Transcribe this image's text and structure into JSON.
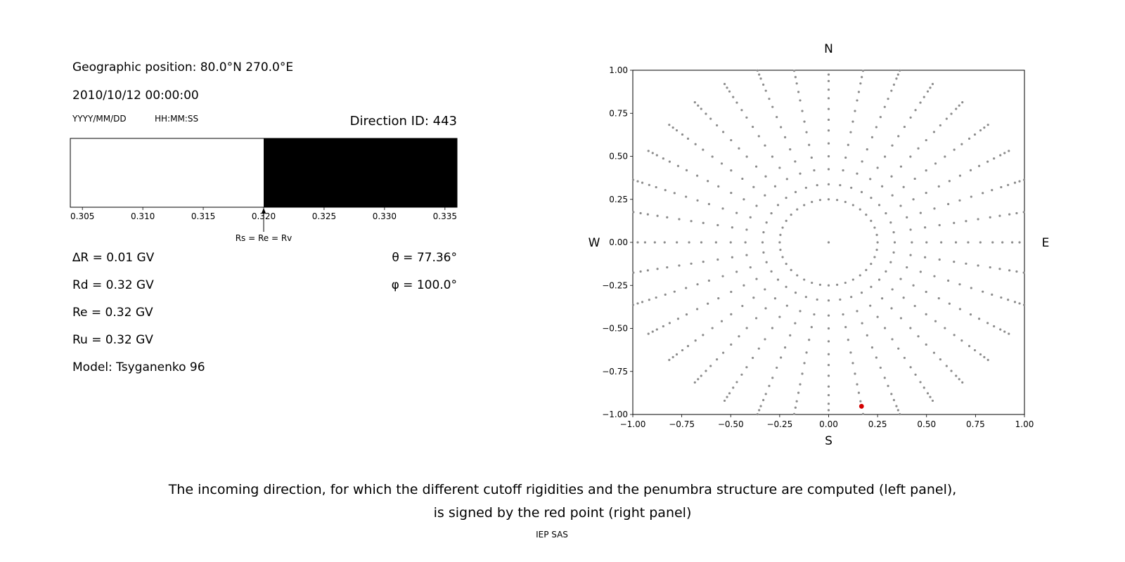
{
  "page": {
    "background": "#ffffff",
    "footer": "IEP SAS"
  },
  "header": {
    "geo_position": "Geographic position: 80.0°N 270.0°E",
    "datetime": "2010/10/12 00:00:00",
    "date_format_hint": "YYYY/MM/DD",
    "time_format_hint": "HH:MM:SS",
    "direction_id": "Direction ID: 443"
  },
  "parameters": {
    "left": [
      "∆R = 0.01 GV",
      "Rd = 0.32 GV",
      "Re = 0.32 GV",
      "Ru = 0.32 GV",
      "Model: Tsyganenko 96"
    ],
    "right": [
      "θ = 77.36°",
      "φ = 100.0°"
    ]
  },
  "compass": {
    "north": "N",
    "south": "S",
    "west": "W",
    "east": "E"
  },
  "caption": {
    "line1": "The incoming direction, for which the different cutoff rigidities and the penumbra structure are computed (left panel),",
    "line2": "is signed by the red point (right panel)"
  },
  "chart_data": [
    {
      "type": "bar",
      "name": "penumbra-structure",
      "title": "",
      "xlabel": "",
      "xlim": [
        0.304,
        0.336
      ],
      "xticks": [
        0.305,
        0.31,
        0.315,
        0.32,
        0.325,
        0.33,
        0.335
      ],
      "xtick_labels": [
        "0.305",
        "0.310",
        "0.315",
        "0.320",
        "0.325",
        "0.330",
        "0.335"
      ],
      "bands": [
        {
          "from": 0.304,
          "to": 0.32,
          "color": "#ffffff",
          "meaning": "allowed"
        },
        {
          "from": 0.32,
          "to": 0.336,
          "color": "#000000",
          "meaning": "forbidden"
        }
      ],
      "annotation": {
        "value": 0.32,
        "label": "Rs = Re = Rv"
      }
    },
    {
      "type": "scatter",
      "name": "incoming-directions",
      "xlim": [
        -1,
        1
      ],
      "ylim": [
        -1,
        1
      ],
      "xticks": [
        -1,
        -0.75,
        -0.5,
        -0.25,
        0,
        0.25,
        0.5,
        0.75,
        1
      ],
      "xtick_labels": [
        "−1.00",
        "−0.75",
        "−0.50",
        "−0.25",
        "0.00",
        "0.25",
        "0.50",
        "0.75",
        "1.00"
      ],
      "yticks": [
        -1,
        -0.75,
        -0.5,
        -0.25,
        0,
        0.25,
        0.5,
        0.75,
        1
      ],
      "ytick_labels": [
        "−1.00",
        "−0.75",
        "−0.50",
        "−0.25",
        "0.00",
        "0.25",
        "0.50",
        "0.75",
        "1.00"
      ],
      "grid": false,
      "dot_color": "#8c8c8c",
      "center_dot": true,
      "spokes": {
        "azimuth_start_deg": 0,
        "azimuth_step_deg": 10,
        "azimuth_count": 36,
        "zenith_deg": [
          20,
          27,
          34,
          40,
          46,
          52,
          57,
          62,
          67,
          71,
          75,
          78,
          81,
          83,
          85
        ],
        "zenith_scale_deg": 80,
        "radius_rule": "r = zenith_deg / zenith_scale_deg, clipped to axes limits"
      },
      "red_point": {
        "azimuth_deg": 170,
        "zenith_deg": 77.36,
        "color": "#d40000"
      }
    }
  ]
}
